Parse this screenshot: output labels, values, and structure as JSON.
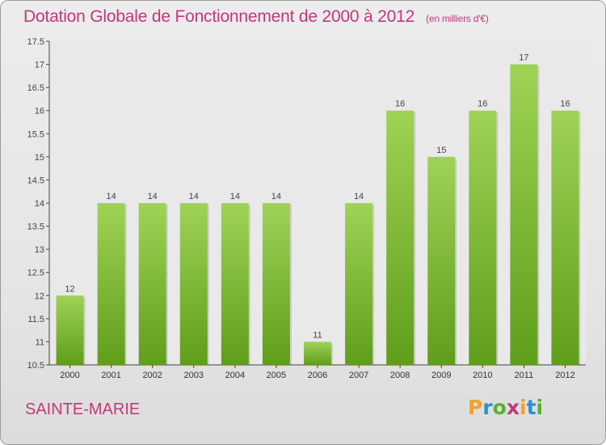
{
  "title": "Dotation Globale de Fonctionnement de 2000 à 2012",
  "subtitle": "(en milliers d'€)",
  "town": "SAINTE-MARIE",
  "logo": {
    "letters": [
      "P",
      "r",
      "o",
      "x",
      "i",
      "t",
      "i"
    ],
    "colors": [
      "#f0a22a",
      "#2b8fd0",
      "#58b030",
      "#c1387c",
      "#f0a22a",
      "#2b8fd0",
      "#58b030"
    ]
  },
  "colors": {
    "bar_top": "#9fd356",
    "bar_bottom": "#5f9e1a",
    "accent": "#c1387c"
  },
  "chart_data": {
    "type": "bar",
    "categories": [
      "2000",
      "2001",
      "2002",
      "2003",
      "2004",
      "2005",
      "2006",
      "2007",
      "2008",
      "2009",
      "2010",
      "2011",
      "2012"
    ],
    "values": [
      12,
      14,
      14,
      14,
      14,
      14,
      11,
      14,
      16,
      15,
      16,
      17,
      16
    ],
    "data_labels": [
      "12",
      "14",
      "14",
      "14",
      "14",
      "14",
      "11",
      "14",
      "16",
      "15",
      "16",
      "17",
      "16"
    ],
    "yticks": [
      10.5,
      11,
      11.5,
      12,
      12.5,
      13,
      13.5,
      14,
      14.5,
      15,
      15.5,
      16,
      16.5,
      17,
      17.5
    ],
    "ytick_labels": [
      "10.5",
      "11",
      "11.5",
      "12",
      "12.5",
      "13",
      "13.5",
      "14",
      "14.5",
      "15",
      "15.5",
      "16",
      "16.5",
      "17",
      "17.5"
    ],
    "ylim": [
      10.5,
      17.5
    ],
    "grid": false,
    "xlabel": "",
    "ylabel": ""
  }
}
